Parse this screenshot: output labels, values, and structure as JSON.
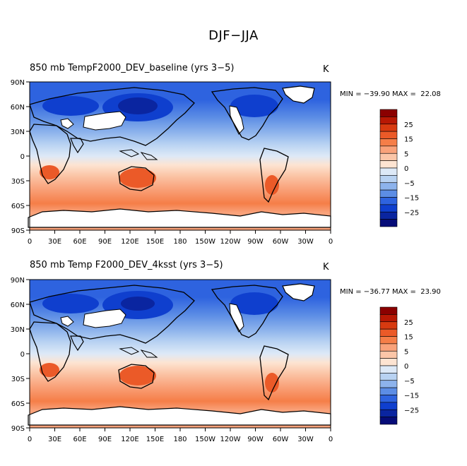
{
  "figure_title": "DJF−JJA",
  "panels": [
    {
      "title": "850 mb Temp",
      "title_case": "F2000_DEV_baseline (yrs 3−5)",
      "units": "K",
      "min_label": "MIN = −39.90",
      "max_label": "MAX =  22.08"
    },
    {
      "title": "850 mb Temp",
      "title_case": "F2000_DEV_4ksst (yrs 3−5)",
      "units": "K",
      "min_label": "MIN = −36.77",
      "max_label": "MAX =  23.90"
    }
  ],
  "map": {
    "lon_ticks": [
      "0",
      "30E",
      "60E",
      "90E",
      "120E",
      "150E",
      "180",
      "150W",
      "120W",
      "90W",
      "60W",
      "30W",
      "0"
    ],
    "lat_ticks": [
      "90N",
      "60N",
      "30N",
      "0",
      "30S",
      "60S",
      "90S"
    ]
  },
  "colorbar": {
    "labels": [
      "25",
      "15",
      "5",
      "0",
      "−5",
      "−15",
      "−25"
    ],
    "colors": [
      "#8b0000",
      "#b81804",
      "#d83a10",
      "#eb5a28",
      "#f57e48",
      "#f9a27a",
      "#fbc6a8",
      "#fde4d2",
      "#dde9f7",
      "#b8d2f2",
      "#8db3ec",
      "#5c8de5",
      "#2e63df",
      "#0f3fce",
      "#0a25a0",
      "#060c78"
    ]
  },
  "colors": {
    "ocean_tropical": "#f8d6c0",
    "land_mask": "#ffffff",
    "coastline": "#000000"
  }
}
